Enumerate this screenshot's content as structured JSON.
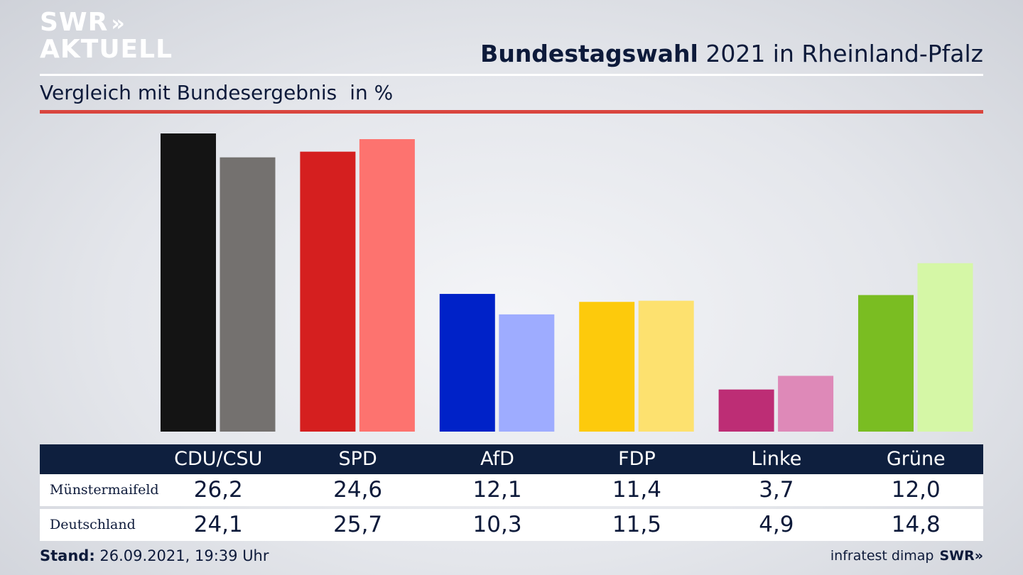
{
  "logo": {
    "line1": "SWR",
    "arrows": "»",
    "line2": "AKTUELL"
  },
  "header": {
    "title_bold": "Bundestagswahl",
    "title_rest": "2021 in Rheinland-Pfalz",
    "subtitle": "Vergleich mit Bundesergebnis",
    "unit": "in %"
  },
  "chart_data": {
    "type": "bar",
    "title": "Bundestagswahl 2021 in Rheinland-Pfalz",
    "subtitle": "Vergleich mit Bundesergebnis",
    "ylabel": "in %",
    "categories": [
      "CDU/CSU",
      "SPD",
      "AfD",
      "FDP",
      "Linke",
      "Grüne"
    ],
    "series": [
      {
        "name": "Münstermaifeld",
        "values": [
          26.2,
          24.6,
          12.1,
          11.4,
          3.7,
          12.0
        ],
        "value_labels": [
          "26,2",
          "24,6",
          "12,1",
          "11,4",
          "3,7",
          "12,0"
        ],
        "colors": [
          "#141414",
          "#d51f1f",
          "#0022c8",
          "#fdca0c",
          "#bd2d75",
          "#7abd22"
        ]
      },
      {
        "name": "Deutschland",
        "values": [
          24.1,
          25.7,
          10.3,
          11.5,
          4.9,
          14.8
        ],
        "value_labels": [
          "24,1",
          "25,7",
          "10,3",
          "11,5",
          "4,9",
          "14,8"
        ],
        "colors": [
          "#74716f",
          "#fd736f",
          "#9eacff",
          "#fde16f",
          "#de89b8",
          "#d5f7a6"
        ]
      }
    ],
    "ylim": [
      0,
      26.2
    ]
  },
  "footer": {
    "stand_label": "Stand:",
    "stand_value": "26.09.2021, 19:39 Uhr",
    "source": "infratest dimap",
    "source_logo": "SWR»"
  }
}
